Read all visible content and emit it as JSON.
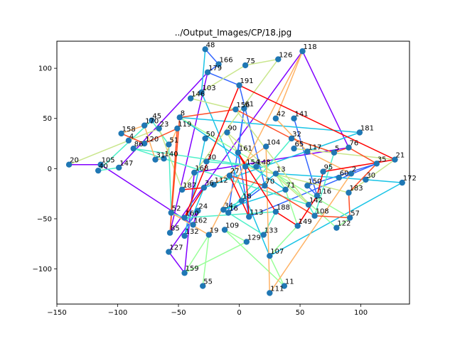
{
  "chart_data": {
    "type": "scatter",
    "title": "../Output_Images/CP/18.jpg",
    "xlabel": "",
    "ylabel": "",
    "xlim": [
      -150,
      140
    ],
    "ylim": [
      -135,
      127
    ],
    "xticks": [
      -150,
      -100,
      -50,
      0,
      50,
      100
    ],
    "yticks": [
      -100,
      -50,
      0,
      50,
      100
    ],
    "xtick_labels": [
      "−150",
      "−100",
      "−50",
      "0",
      "50",
      "100"
    ],
    "ytick_labels": [
      "−100",
      "−50",
      "0",
      "50",
      "100"
    ],
    "grid": false,
    "marker_color": "#1f77b4",
    "points": [
      {
        "label": "20",
        "x": -140,
        "y": 4
      },
      {
        "label": "40",
        "x": -116,
        "y": -2
      },
      {
        "label": "105",
        "x": -114,
        "y": 4
      },
      {
        "label": "147",
        "x": -99,
        "y": 1
      },
      {
        "label": "158",
        "x": -97,
        "y": 35
      },
      {
        "label": "4",
        "x": -91,
        "y": 28
      },
      {
        "label": "86",
        "x": -87,
        "y": 20
      },
      {
        "label": "120",
        "x": -78,
        "y": 25
      },
      {
        "label": "170",
        "x": -78,
        "y": 43
      },
      {
        "label": "45",
        "x": -72,
        "y": 48
      },
      {
        "label": "23",
        "x": -66,
        "y": 40
      },
      {
        "label": "31",
        "x": -69,
        "y": 9
      },
      {
        "label": "140",
        "x": -62,
        "y": 10
      },
      {
        "label": "51",
        "x": -58,
        "y": 24
      },
      {
        "label": "8",
        "x": -49,
        "y": 51
      },
      {
        "label": "119",
        "x": -51,
        "y": 40
      },
      {
        "label": "187",
        "x": -47,
        "y": -21
      },
      {
        "label": "168",
        "x": -37,
        "y": -4
      },
      {
        "label": "36",
        "x": -29,
        "y": -19
      },
      {
        "label": "52",
        "x": -56,
        "y": -44
      },
      {
        "label": "24",
        "x": -34,
        "y": -42
      },
      {
        "label": "160",
        "x": -45,
        "y": -49
      },
      {
        "label": "162",
        "x": -38,
        "y": -56
      },
      {
        "label": "85",
        "x": -57,
        "y": -64
      },
      {
        "label": "132",
        "x": -45,
        "y": -67
      },
      {
        "label": "127",
        "x": -58,
        "y": -83
      },
      {
        "label": "159",
        "x": -45,
        "y": -104
      },
      {
        "label": "55",
        "x": -30,
        "y": -117
      },
      {
        "label": "19",
        "x": -25,
        "y": -66
      },
      {
        "label": "48",
        "x": -28,
        "y": 119
      },
      {
        "label": "166",
        "x": -17,
        "y": 104
      },
      {
        "label": "179",
        "x": -26,
        "y": 96
      },
      {
        "label": "75",
        "x": 5,
        "y": 103
      },
      {
        "label": "126",
        "x": 32,
        "y": 109
      },
      {
        "label": "118",
        "x": 52,
        "y": 117
      },
      {
        "label": "191",
        "x": 0,
        "y": 83
      },
      {
        "label": "103",
        "x": -31,
        "y": 76
      },
      {
        "label": "146",
        "x": -40,
        "y": 70
      },
      {
        "label": "141",
        "x": 45,
        "y": 50
      },
      {
        "label": "156",
        "x": -3,
        "y": 59
      },
      {
        "label": "181",
        "x": 99,
        "y": 36
      },
      {
        "label": "42",
        "x": 30,
        "y": 50
      },
      {
        "label": "32",
        "x": 43,
        "y": 30
      },
      {
        "label": "76",
        "x": 90,
        "y": 21
      },
      {
        "label": "5",
        "x": 78,
        "y": 16
      },
      {
        "label": "117",
        "x": 56,
        "y": 17
      },
      {
        "label": "35",
        "x": 113,
        "y": 5
      },
      {
        "label": "21",
        "x": 128,
        "y": 9
      },
      {
        "label": "172",
        "x": 134,
        "y": -14
      },
      {
        "label": "30",
        "x": 104,
        "y": -11
      },
      {
        "label": "2",
        "x": 92,
        "y": -5
      },
      {
        "label": "60",
        "x": 82,
        "y": -9
      },
      {
        "label": "95",
        "x": 69,
        "y": -3
      },
      {
        "label": "183",
        "x": 90,
        "y": -24
      },
      {
        "label": "116",
        "x": 64,
        "y": -27
      },
      {
        "label": "57",
        "x": 91,
        "y": -49
      },
      {
        "label": "122",
        "x": 80,
        "y": -59
      },
      {
        "label": "108",
        "x": 62,
        "y": -47
      },
      {
        "label": "142",
        "x": 57,
        "y": -36
      },
      {
        "label": "150",
        "x": 56,
        "y": -17
      },
      {
        "label": "13",
        "x": 30,
        "y": -5
      },
      {
        "label": "70",
        "x": 21,
        "y": -17
      },
      {
        "label": "71",
        "x": 38,
        "y": -21
      },
      {
        "label": "149",
        "x": 48,
        "y": -57
      },
      {
        "label": "188",
        "x": 30,
        "y": -43
      },
      {
        "label": "133",
        "x": 20,
        "y": -66
      },
      {
        "label": "107",
        "x": 25,
        "y": -87
      },
      {
        "label": "11",
        "x": 37,
        "y": -117
      },
      {
        "label": "111",
        "x": 25,
        "y": -124
      },
      {
        "label": "129",
        "x": 6,
        "y": -73
      },
      {
        "label": "109",
        "x": -12,
        "y": -61
      },
      {
        "label": "34",
        "x": -13,
        "y": -41
      },
      {
        "label": "16",
        "x": -9,
        "y": -44
      },
      {
        "label": "18",
        "x": 2,
        "y": -32
      },
      {
        "label": "161",
        "x": -1,
        "y": 16
      },
      {
        "label": "90",
        "x": -10,
        "y": 36
      },
      {
        "label": "50",
        "x": -28,
        "y": 30
      },
      {
        "label": "65",
        "x": 45,
        "y": 20
      },
      {
        "label": "104",
        "x": 22,
        "y": 22
      },
      {
        "label": "148",
        "x": 14,
        "y": 2
      },
      {
        "label": "154",
        "x": 5,
        "y": 2
      },
      {
        "label": "112",
        "x": -21,
        "y": -16
      },
      {
        "label": "27",
        "x": -8,
        "y": -7
      },
      {
        "label": "61",
        "x": 4,
        "y": 60
      },
      {
        "label": "113",
        "x": 8,
        "y": -48
      },
      {
        "label": "30b",
        "x": -27,
        "y": 7
      }
    ],
    "series": [
      {
        "color": "#8000ff",
        "order": [
          0,
          2,
          22,
          20,
          25,
          26,
          17,
          43,
          34,
          23,
          31,
          3
        ]
      },
      {
        "color": "#3366ff",
        "order": [
          29,
          30,
          31,
          35,
          61,
          72,
          83,
          74,
          84,
          46,
          59,
          54,
          38
        ]
      },
      {
        "color": "#1ac4e6",
        "order": [
          29,
          36,
          66,
          48,
          49,
          51,
          60,
          73,
          71,
          62,
          14,
          40,
          18,
          24,
          76
        ]
      },
      {
        "color": "#4df0c9",
        "order": [
          3,
          1,
          9,
          13,
          19,
          21,
          64,
          65,
          72,
          42,
          44,
          57,
          58,
          12,
          6,
          79,
          85
        ]
      },
      {
        "color": "#99ff99",
        "order": [
          27,
          28,
          26,
          69,
          70,
          67,
          66,
          63,
          62,
          60,
          56,
          55,
          14
        ]
      },
      {
        "color": "#c9e68c",
        "order": [
          0,
          5,
          10,
          16,
          33,
          32,
          37,
          39,
          58,
          75,
          80,
          53,
          47,
          77
        ]
      },
      {
        "color": "#ffb366",
        "order": [
          4,
          8,
          11,
          12,
          15,
          19,
          28,
          34,
          41,
          45,
          50,
          68,
          78,
          81
        ]
      },
      {
        "color": "#ff4d26",
        "order": [
          4,
          7,
          15,
          23,
          14,
          39,
          42,
          44,
          43,
          46,
          53,
          55,
          57,
          61,
          82
        ]
      },
      {
        "color": "#ff0000",
        "order": [
          16,
          18,
          21,
          35,
          47,
          52,
          54,
          63,
          64,
          74,
          80,
          84,
          82
        ]
      }
    ]
  }
}
